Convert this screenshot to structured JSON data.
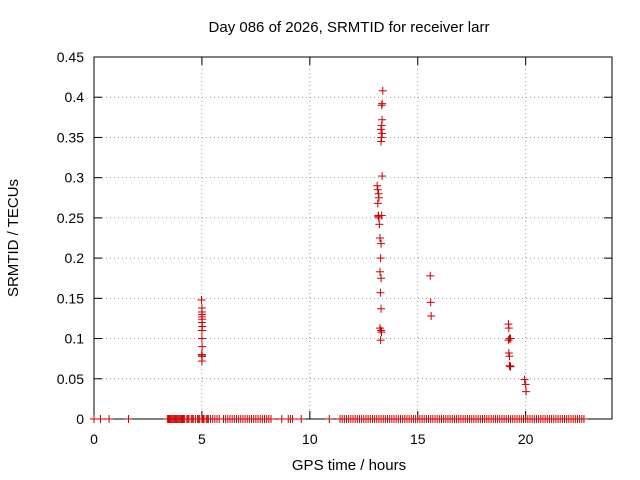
{
  "chart_data": {
    "type": "scatter",
    "title": "Day 086 of 2026, SRMTID for receiver larr",
    "xlabel": "GPS time / hours",
    "ylabel": "SRMTID / TECUs",
    "xlim": [
      0,
      24
    ],
    "ylim": [
      0,
      0.45
    ],
    "x_ticks": [
      0,
      5,
      10,
      15,
      20
    ],
    "y_ticks": [
      0,
      0.05,
      0.1,
      0.15,
      0.2,
      0.25,
      0.3,
      0.35,
      0.4,
      0.45
    ],
    "x_tick_labels": [
      "0",
      "5",
      "10",
      "15",
      "20"
    ],
    "y_tick_labels": [
      "0",
      "0.05",
      "0.1",
      "0.15",
      "0.2",
      "0.25",
      "0.3",
      "0.35",
      "0.4",
      "0.45"
    ],
    "grid": true,
    "marker": "+",
    "marker_color": "#cc0000",
    "series": [
      {
        "name": "SRMTID",
        "x": [
          4.98,
          5.0,
          5.0,
          5.01,
          5.0,
          5.01,
          5.0,
          5.02,
          5.0,
          5.0,
          5.01,
          5.0,
          4.99,
          5.0,
          5.0,
          5.01,
          13.12,
          13.15,
          13.18,
          13.2,
          13.15,
          13.18,
          13.17,
          13.2,
          13.22,
          13.25,
          13.3,
          13.28,
          13.25,
          13.3,
          13.27,
          13.3,
          13.25,
          13.3,
          13.32,
          13.28,
          13.33,
          13.35,
          13.3,
          13.32,
          13.35,
          13.3,
          13.33,
          13.35,
          13.33,
          13.35,
          13.38,
          15.58,
          15.6,
          15.62,
          19.2,
          19.22,
          19.25,
          19.2,
          19.3,
          19.22,
          19.25,
          19.27,
          19.3,
          19.25,
          19.95,
          20.0,
          20.02
        ],
        "y": [
          0.148,
          0.138,
          0.133,
          0.13,
          0.127,
          0.124,
          0.12,
          0.115,
          0.11,
          0.1,
          0.09,
          0.08,
          0.08,
          0.078,
          0.072,
          0.078,
          0.29,
          0.285,
          0.28,
          0.275,
          0.268,
          0.253,
          0.252,
          0.25,
          0.242,
          0.225,
          0.218,
          0.2,
          0.183,
          0.175,
          0.157,
          0.137,
          0.113,
          0.11,
          0.108,
          0.098,
          0.253,
          0.302,
          0.345,
          0.35,
          0.355,
          0.36,
          0.365,
          0.372,
          0.39,
          0.392,
          0.408,
          0.178,
          0.145,
          0.128,
          0.118,
          0.113,
          0.1,
          0.098,
          0.1,
          0.082,
          0.078,
          0.066,
          0.065,
          0.066,
          0.049,
          0.043,
          0.034
        ],
        "baseline_x": [
          0.0,
          0.3,
          0.7,
          1.6,
          3.4,
          3.45,
          3.5,
          3.55,
          3.6,
          3.65,
          3.7,
          3.75,
          3.8,
          3.85,
          3.9,
          3.95,
          4.0,
          4.05,
          4.1,
          4.15,
          4.2,
          4.3,
          4.35,
          4.4,
          4.5,
          4.55,
          4.6,
          4.7,
          4.8,
          4.85,
          4.9,
          5.0,
          5.05,
          5.1,
          5.2,
          5.25,
          5.3,
          5.4,
          5.5,
          5.6,
          5.7,
          5.8,
          6.0,
          6.1,
          6.2,
          6.3,
          6.4,
          6.5,
          6.6,
          6.7,
          6.8,
          6.9,
          7.0,
          7.1,
          7.2,
          7.3,
          7.4,
          7.5,
          7.6,
          7.7,
          7.8,
          7.9,
          8.0,
          8.1,
          8.2,
          8.7,
          9.0,
          9.1,
          9.2,
          9.6,
          10.9,
          11.4,
          11.5,
          11.6,
          11.7,
          11.8,
          11.9,
          12.0,
          12.1,
          12.2,
          12.3,
          12.4,
          12.5,
          12.6,
          12.7,
          12.8,
          12.9,
          13.0,
          13.1,
          13.2,
          13.3,
          13.4,
          13.5,
          13.6,
          13.7,
          13.8,
          13.9,
          14.0,
          14.1,
          14.2,
          14.3,
          14.4,
          14.5,
          14.6,
          14.7,
          14.8,
          14.9,
          15.0,
          15.1,
          15.2,
          15.3,
          15.4,
          15.5,
          15.6,
          15.7,
          15.8,
          15.9,
          16.0,
          16.1,
          16.2,
          16.3,
          16.4,
          16.5,
          16.6,
          16.7,
          16.8,
          16.9,
          17.0,
          17.1,
          17.2,
          17.3,
          17.4,
          17.5,
          17.6,
          17.7,
          17.8,
          17.9,
          18.0,
          18.1,
          18.2,
          18.3,
          18.4,
          18.5,
          18.6,
          18.7,
          18.8,
          18.9,
          19.0,
          19.1,
          19.2,
          19.3,
          19.4,
          19.5,
          19.6,
          19.7,
          19.8,
          19.9,
          20.0,
          20.1,
          20.2,
          20.3,
          20.4,
          20.5,
          20.6,
          20.7,
          20.8,
          20.9,
          21.0,
          21.1,
          21.2,
          21.3,
          21.4,
          21.5,
          21.6,
          21.7,
          21.8,
          21.9,
          22.0,
          22.1,
          22.2,
          22.3,
          22.4,
          22.5,
          22.6,
          22.7
        ]
      }
    ]
  }
}
